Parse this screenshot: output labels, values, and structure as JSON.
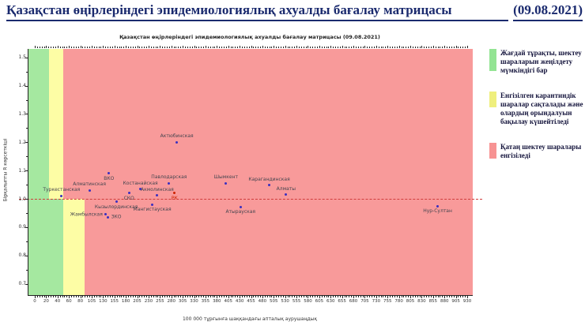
{
  "header": {
    "title": "Қазақстан өңірлеріндегі эпидемиологиялық ахуалды бағалау матрицасы",
    "date": "(09.08.2021)"
  },
  "chart_data": {
    "type": "scatter",
    "title": "Қазақстан өңірлеріндегі эпидемиологиялық ахуалды бағалау матрицасы  (09.08.2021)",
    "xlabel": "100 000 тұрғынға шаққандағы апталық аурушаңдық",
    "ylabel": "Бірқалыпты R көрсеткіші",
    "x_ticks": [
      0,
      20,
      40,
      60,
      80,
      105,
      130,
      155,
      180,
      205,
      230,
      255,
      280,
      305,
      330,
      355,
      380,
      405,
      430,
      455,
      480,
      505,
      530,
      555,
      580,
      605,
      630,
      655,
      680,
      705,
      730,
      755,
      780,
      805,
      830,
      855,
      880,
      905,
      930
    ],
    "y_ticks": [
      0.7,
      0.8,
      0.9,
      1.0,
      1.1,
      1.2,
      1.3,
      1.4,
      1.5
    ],
    "ylim": [
      0.66,
      1.53
    ],
    "threshold_r": 1.0,
    "grid": false,
    "zones": {
      "r_above_1": [
        {
          "zone": "green",
          "x": [
            0,
            25
          ]
        },
        {
          "zone": "yellow",
          "x": [
            25,
            50
          ]
        },
        {
          "zone": "red",
          "x": [
            50,
            930
          ]
        }
      ],
      "r_below_1": [
        {
          "zone": "green",
          "x": [
            0,
            50
          ]
        },
        {
          "zone": "yellow",
          "x": [
            50,
            90
          ]
        },
        {
          "zone": "red",
          "x": [
            90,
            930
          ]
        }
      ]
    },
    "points": [
      {
        "name": "Актюбинская",
        "x": 292,
        "y": 1.2,
        "label": "above"
      },
      {
        "name": "ВКО",
        "x": 143,
        "y": 1.09,
        "label": "below"
      },
      {
        "name": "Алматинская",
        "x": 100,
        "y": 1.03,
        "label": "above"
      },
      {
        "name": "Туркестанская",
        "x": 47,
        "y": 1.01,
        "label": "above"
      },
      {
        "name": "Костанайская",
        "x": 212,
        "y": 1.035,
        "label": "above"
      },
      {
        "name": "Павлодарская",
        "x": 275,
        "y": 1.055,
        "label": "above"
      },
      {
        "name": "Акмолинская",
        "x": 249,
        "y": 1.012,
        "label": "above"
      },
      {
        "name": "СКО",
        "x": 187,
        "y": 1.02,
        "label": "below"
      },
      {
        "name": "РК",
        "x": 287,
        "y": 1.02,
        "label": "below",
        "color": "red"
      },
      {
        "name": "Шымкент",
        "x": 400,
        "y": 1.055,
        "label": "above"
      },
      {
        "name": "Карагандинская",
        "x": 495,
        "y": 1.048,
        "label": "above"
      },
      {
        "name": "Алматы",
        "x": 532,
        "y": 1.015,
        "label": "above"
      },
      {
        "name": "Кызылординская",
        "x": 159,
        "y": 0.99,
        "label": "below"
      },
      {
        "name": "Мангистауская",
        "x": 238,
        "y": 0.98,
        "label": "below"
      },
      {
        "name": "Атырауская",
        "x": 432,
        "y": 0.972,
        "label": "below"
      },
      {
        "name": "Жамбылская",
        "x": 136,
        "y": 0.945,
        "label": "left"
      },
      {
        "name": "ЗКО",
        "x": 141,
        "y": 0.935,
        "label": "right"
      },
      {
        "name": "Нур-Султан",
        "x": 865,
        "y": 0.975,
        "label": "below"
      }
    ]
  },
  "legend": {
    "items": [
      {
        "color_key": "green",
        "text": "Жағдай тұрақты, шектеу шараларын жеңілдету мүмкіндігі бар"
      },
      {
        "color_key": "yellow",
        "text": "Енгізілген карантиндік шаралар сақталады және олардың орындалуын бақылау күшейтіледі"
      },
      {
        "color_key": "red",
        "text": "Қатаң шектеу шаралары енгізіледі"
      }
    ]
  },
  "colors": {
    "zone_green": "#a5e8a0",
    "zone_yellow": "#fdfda5",
    "zone_red": "#f89a9a",
    "legend_green": "#93e493",
    "legend_yellow": "#efef7d",
    "legend_red": "#f79393",
    "dashed_line": "#d03c3c",
    "point": "#3a2fc0",
    "point_rk": "#cc2200",
    "title_navy": "#1a2a6e"
  }
}
